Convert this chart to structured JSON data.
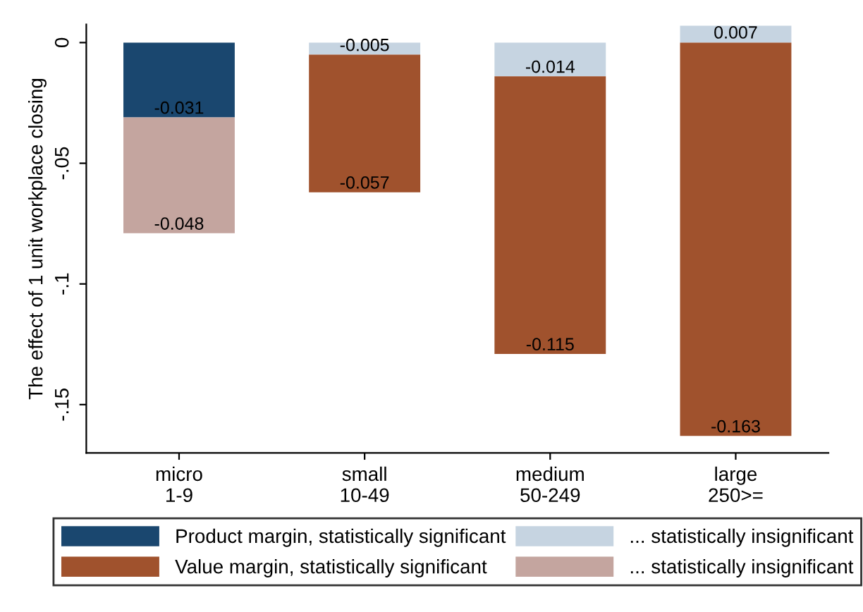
{
  "chart_data": {
    "type": "bar",
    "stacked": true,
    "ylabel": "The effect of 1 unit workplace closing",
    "categories": [
      "micro\n1-9",
      "small\n10-49",
      "medium\n50-249",
      "large\n250>="
    ],
    "series": [
      {
        "name": "Product margin, statistically significant",
        "color": "#1a476f",
        "values": [
          -0.031,
          null,
          null,
          null
        ]
      },
      {
        "name": "... statistically insignificant",
        "color": "#c6d4e1",
        "values": [
          null,
          -0.005,
          -0.014,
          0.007
        ]
      },
      {
        "name": "Value margin, statistically significant",
        "color": "#a0522d",
        "values": [
          null,
          -0.057,
          -0.115,
          -0.163
        ]
      },
      {
        "name": "... statistically insignificant",
        "color": "#c4a59f",
        "values": [
          -0.048,
          null,
          null,
          null
        ]
      }
    ],
    "ylim": [
      -0.17,
      0.0075
    ],
    "yticks": [
      {
        "value": 0,
        "label": "0"
      },
      {
        "value": -0.05,
        "label": "-.05"
      },
      {
        "value": -0.1,
        "label": "-.1"
      },
      {
        "value": -0.15,
        "label": "-.15"
      }
    ],
    "data_labels": true,
    "grid": false,
    "legend": "bottom"
  }
}
